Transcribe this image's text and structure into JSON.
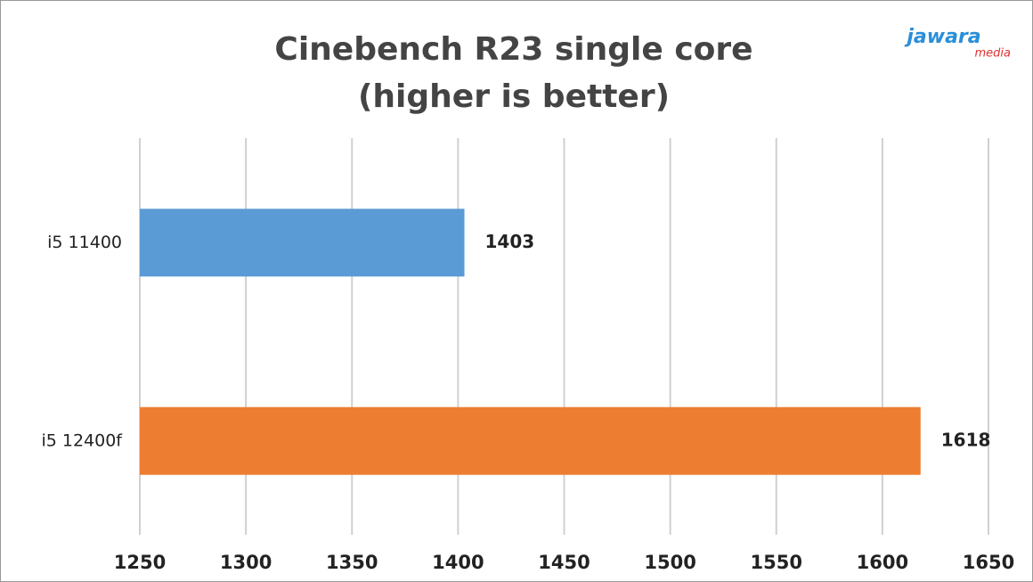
{
  "chart_data": {
    "type": "hbar",
    "title": "Cinebench R23 single core",
    "subtitle": "(higher is better)",
    "logo": {
      "brand": "jawara",
      "sub": "media"
    },
    "categories": [
      "i5 11400",
      "i5 12400f"
    ],
    "values": [
      1403,
      1618
    ],
    "colors": [
      "#5b9bd5",
      "#ed7d31"
    ],
    "xlim": [
      1250,
      1650
    ],
    "xticks": [
      1250,
      1300,
      1350,
      1400,
      1450,
      1500,
      1550,
      1600,
      1650
    ],
    "grid": true
  }
}
